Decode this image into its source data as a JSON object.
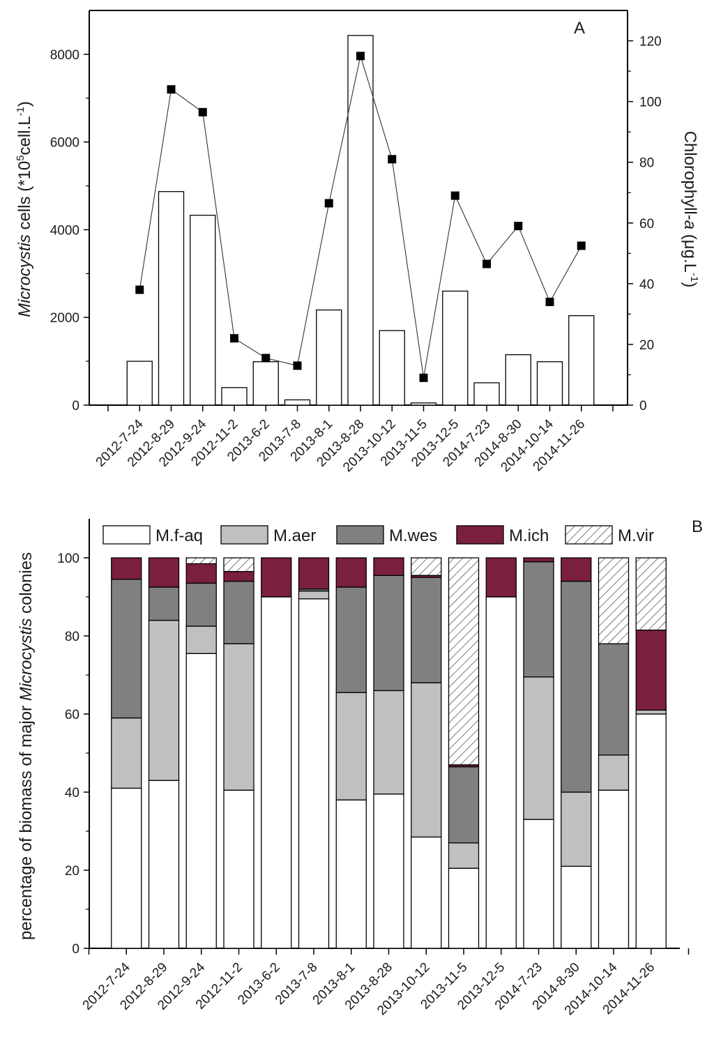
{
  "chart_data": [
    {
      "type": "bar+line",
      "panel_label": "A",
      "categories": [
        "2012-7-24",
        "2012-8-29",
        "2012-9-24",
        "2012-11-2",
        "2013-6-2",
        "2013-7-8",
        "2013-8-1",
        "2013-8-28",
        "2013-10-12",
        "2013-11-5",
        "2013-12-5",
        "2014-7-23",
        "2014-8-30",
        "2014-10-14",
        "2014-11-26"
      ],
      "bar_series": {
        "name": "Microcystis cells",
        "values": [
          1000,
          4870,
          4330,
          400,
          990,
          120,
          2170,
          8430,
          1700,
          50,
          2600,
          510,
          1150,
          990,
          2040
        ]
      },
      "line_series": {
        "name": "Chlorophyll-a",
        "values": [
          38,
          104,
          96.5,
          22,
          15.5,
          13,
          66.5,
          115,
          81,
          9,
          69,
          46.5,
          59,
          34,
          52.5
        ]
      },
      "y_left": {
        "label_italic": "Microcystis",
        "label_rest": " cells (*10",
        "label_sup": "5",
        "label_end": "cell.L",
        "label_sup2": "-1",
        "label_close": ")",
        "ticks": [
          0,
          2000,
          4000,
          6000,
          8000
        ],
        "ylim": [
          0,
          9000
        ]
      },
      "y_right": {
        "label_pre": "Chlorophyll-",
        "label_italic": "a",
        "label_rest": " (μg.L",
        "label_sup": "-1",
        "label_close": ")",
        "ticks": [
          0,
          20,
          40,
          60,
          80,
          100,
          120
        ],
        "ylim": [
          0,
          130
        ]
      }
    },
    {
      "type": "stacked-bar",
      "panel_label": "B",
      "categories": [
        "2012-7-24",
        "2012-8-29",
        "2012-9-24",
        "2012-11-2",
        "2013-6-2",
        "2013-7-8",
        "2013-8-1",
        "2013-8-28",
        "2013-10-12",
        "2013-11-5",
        "2013-12-5",
        "2014-7-23",
        "2014-8-30",
        "2014-10-14",
        "2014-11-26"
      ],
      "series": [
        {
          "name": "M.f-aq",
          "color": "#ffffff",
          "pattern": "none",
          "values": [
            41,
            43,
            75.5,
            40.5,
            90,
            89.5,
            38,
            39.5,
            28.5,
            20.5,
            90,
            33,
            21,
            40.5,
            60
          ]
        },
        {
          "name": "M.aer",
          "color": "#c0c0c0",
          "pattern": "none",
          "values": [
            18,
            41,
            7,
            37.5,
            0,
            2,
            27.5,
            26.5,
            39.5,
            6.5,
            0,
            36.5,
            19,
            9,
            1
          ]
        },
        {
          "name": "M.wes",
          "color": "#808080",
          "pattern": "none",
          "values": [
            35.5,
            8.5,
            11,
            16,
            0,
            0.5,
            27,
            29.5,
            27,
            19.5,
            0,
            29.5,
            54,
            28.5,
            0
          ]
        },
        {
          "name": "M.ich",
          "color": "#7b1f3f",
          "pattern": "none",
          "values": [
            5.5,
            7.5,
            5,
            2.5,
            10,
            8,
            7.5,
            4.5,
            0.5,
            0.5,
            10,
            1,
            6,
            0,
            20.5
          ]
        },
        {
          "name": "M.vir",
          "color": "#ffffff",
          "pattern": "hatch",
          "values": [
            0,
            0,
            1.5,
            3.5,
            0,
            0,
            0,
            0,
            4.5,
            53,
            0,
            0,
            0,
            22,
            18.5
          ]
        }
      ],
      "y_axis": {
        "label_pre": "percentage of biomass of major ",
        "label_italic": "Microcystis",
        "label_post": " colonies",
        "ticks": [
          0,
          20,
          40,
          60,
          80,
          100
        ],
        "ylim": [
          0,
          110
        ]
      }
    }
  ]
}
